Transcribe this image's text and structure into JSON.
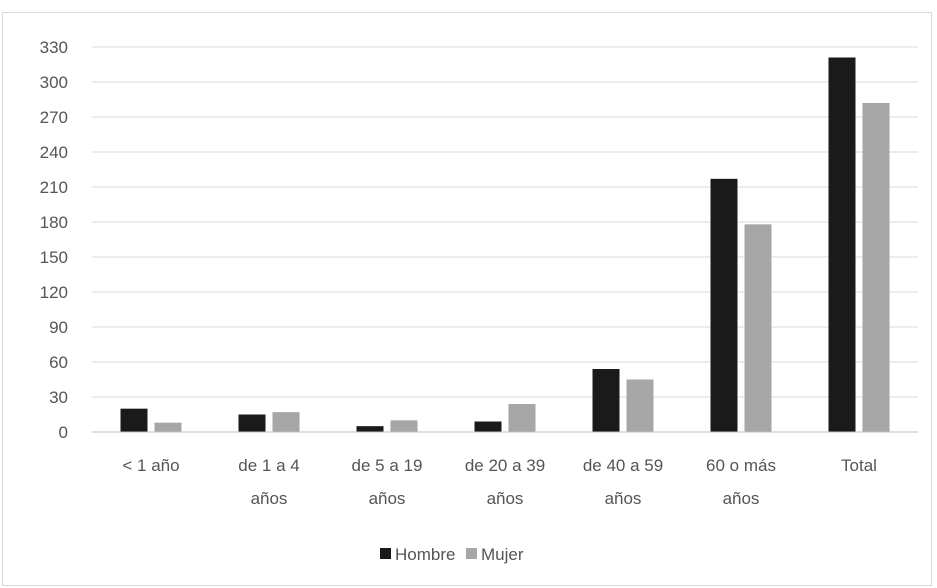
{
  "chart_data": {
    "type": "bar",
    "title": "",
    "xlabel": "",
    "ylabel": "",
    "categories": [
      [
        "< 1 año"
      ],
      [
        "de 1 a 4",
        "años"
      ],
      [
        "de 5 a 19",
        "años"
      ],
      [
        "de 20 a 39",
        "años"
      ],
      [
        "de 40 a 59",
        "años"
      ],
      [
        "60 o más",
        "años"
      ],
      [
        "Total"
      ]
    ],
    "series": [
      {
        "name": "Hombre",
        "color": "#1a1a1a",
        "values": [
          20,
          15,
          5,
          9,
          54,
          217,
          321
        ]
      },
      {
        "name": "Mujer",
        "color": "#a6a6a6",
        "values": [
          8,
          17,
          10,
          24,
          45,
          178,
          282
        ]
      }
    ],
    "ylim": [
      0,
      330
    ],
    "yticks": [
      0,
      30,
      60,
      90,
      120,
      150,
      180,
      210,
      240,
      270,
      300,
      330
    ],
    "grid": true,
    "legend_position": "bottom"
  }
}
